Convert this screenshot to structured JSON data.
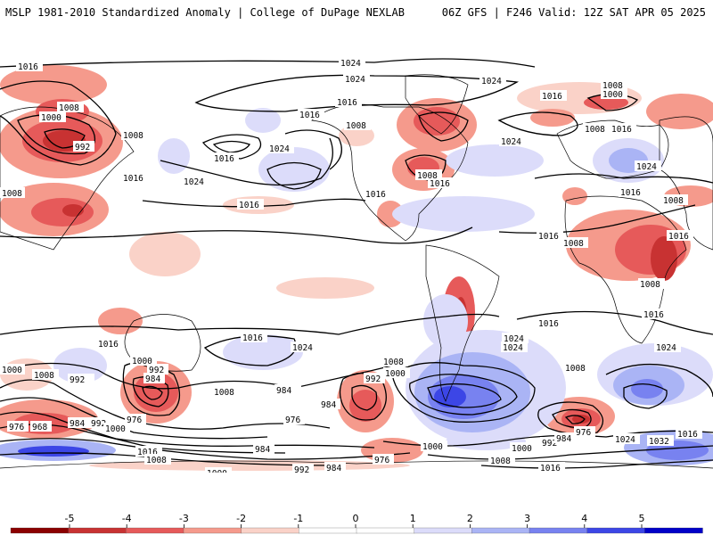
{
  "header": {
    "left": "MSLP 1981-2010 Standardized Anomaly | College of DuPage NEXLAB",
    "right": "06Z GFS | F246 Valid: 12Z SAT APR 05 2025"
  },
  "colors": {
    "neg5": "#8b0000",
    "neg4": "#c83232",
    "neg3": "#e65a5a",
    "neg2": "#f59a8c",
    "neg1": "#fad2c8",
    "zero": "#ffffff",
    "pos1": "#dcdcfa",
    "pos2": "#aab4f5",
    "pos3": "#7882f0",
    "pos4": "#3c46e6",
    "pos5": "#0000c8",
    "land": "#000000",
    "isobar": "#000000"
  },
  "colorbar": {
    "ticks": [
      "-5",
      "-4",
      "-3",
      "-2",
      "-1",
      "0",
      "1",
      "2",
      "3",
      "4",
      "5"
    ]
  },
  "isobar_labels": [
    {
      "id": "l1024a",
      "text": "1024"
    },
    {
      "id": "l1024b",
      "text": "1024"
    },
    {
      "id": "l1024c",
      "text": "1024"
    },
    {
      "id": "l1016a",
      "text": "1016"
    },
    {
      "id": "l1008a",
      "text": "1008"
    },
    {
      "id": "l1000a",
      "text": "1000"
    },
    {
      "id": "l992a",
      "text": "992"
    },
    {
      "id": "l1008b",
      "text": "1008"
    },
    {
      "id": "l1016b",
      "text": "1016"
    },
    {
      "id": "l1016c",
      "text": "1016"
    },
    {
      "id": "l1024d",
      "text": "1024"
    },
    {
      "id": "l1016d",
      "text": "1016"
    },
    {
      "id": "l1016e",
      "text": "1016"
    },
    {
      "id": "l1008c",
      "text": "1008"
    },
    {
      "id": "l1016f",
      "text": "1016"
    },
    {
      "id": "l1008d",
      "text": "1008"
    },
    {
      "id": "l1016g",
      "text": "1016"
    },
    {
      "id": "l1024e",
      "text": "1024"
    },
    {
      "id": "l1016h",
      "text": "1016"
    },
    {
      "id": "l1008e",
      "text": "1008"
    },
    {
      "id": "l1000b",
      "text": "1000"
    },
    {
      "id": "l1008f",
      "text": "1008"
    },
    {
      "id": "l1016i",
      "text": "1016"
    },
    {
      "id": "l1024f",
      "text": "1024"
    },
    {
      "id": "l1016j",
      "text": "1016"
    },
    {
      "id": "l1008g",
      "text": "1008"
    },
    {
      "id": "l1008h",
      "text": "1008"
    },
    {
      "id": "l1016k",
      "text": "1016"
    },
    {
      "id": "l1008i",
      "text": "1008"
    },
    {
      "id": "l1016l",
      "text": "1016"
    },
    {
      "id": "l1016m",
      "text": "1016"
    },
    {
      "id": "l1024g",
      "text": "1024"
    },
    {
      "id": "l1016n",
      "text": "1016"
    },
    {
      "id": "l1008j",
      "text": "1008"
    },
    {
      "id": "l1024h",
      "text": "1024"
    },
    {
      "id": "l1000c",
      "text": "1000"
    },
    {
      "id": "l992b",
      "text": "992"
    },
    {
      "id": "l984a",
      "text": "984"
    },
    {
      "id": "l1008k",
      "text": "1008"
    },
    {
      "id": "l1016o",
      "text": "1016"
    },
    {
      "id": "l1024i",
      "text": "1024"
    },
    {
      "id": "l1016p",
      "text": "1016"
    },
    {
      "id": "l1008l",
      "text": "1008"
    },
    {
      "id": "l1000d",
      "text": "1000"
    },
    {
      "id": "l992c",
      "text": "992"
    },
    {
      "id": "l984b",
      "text": "984"
    },
    {
      "id": "l976a",
      "text": "976"
    },
    {
      "id": "l968a",
      "text": "968"
    },
    {
      "id": "l984c",
      "text": "984"
    },
    {
      "id": "l992d",
      "text": "992"
    },
    {
      "id": "l976b",
      "text": "976"
    },
    {
      "id": "l1000e",
      "text": "1000"
    },
    {
      "id": "l1016q",
      "text": "1016"
    },
    {
      "id": "l1008m",
      "text": "1008"
    },
    {
      "id": "l1000f",
      "text": "1000"
    },
    {
      "id": "l992e",
      "text": "992"
    },
    {
      "id": "l984d",
      "text": "984"
    },
    {
      "id": "l976c",
      "text": "976"
    },
    {
      "id": "l984e",
      "text": "984"
    },
    {
      "id": "l992f",
      "text": "992"
    },
    {
      "id": "l1000g",
      "text": "1000"
    },
    {
      "id": "l1008n",
      "text": "1008"
    },
    {
      "id": "l984f",
      "text": "984"
    },
    {
      "id": "l976d",
      "text": "976"
    },
    {
      "id": "l1008o",
      "text": "1008"
    },
    {
      "id": "l1016r",
      "text": "1016"
    },
    {
      "id": "l1008p",
      "text": "1008"
    },
    {
      "id": "l1016s",
      "text": "1016"
    },
    {
      "id": "l1024j",
      "text": "1024"
    },
    {
      "id": "l1000h",
      "text": "1000"
    },
    {
      "id": "l992g",
      "text": "992"
    },
    {
      "id": "l984g",
      "text": "984"
    },
    {
      "id": "l976e",
      "text": "976"
    },
    {
      "id": "l1024k",
      "text": "1024"
    },
    {
      "id": "l1032a",
      "text": "1032"
    },
    {
      "id": "l1016t",
      "text": "1016"
    },
    {
      "id": "l1000i",
      "text": "1000"
    },
    {
      "id": "l1024l",
      "text": "1024"
    }
  ]
}
